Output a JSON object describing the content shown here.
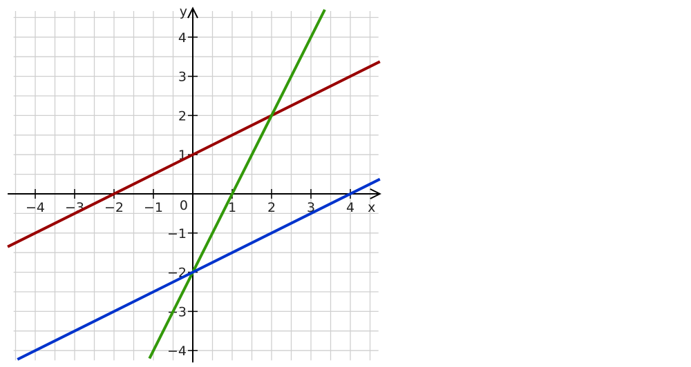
{
  "chart_data": {
    "type": "line",
    "title": "",
    "xlabel": "x",
    "ylabel": "y",
    "origin_label": "0",
    "xlim": [
      -4.7,
      4.75
    ],
    "ylim": [
      -4.25,
      4.7
    ],
    "grid": true,
    "grid_step": 0.5,
    "x_ticks": [
      {
        "value": -4,
        "label": "−4"
      },
      {
        "value": -3,
        "label": "−3"
      },
      {
        "value": -2,
        "label": "−2"
      },
      {
        "value": -1,
        "label": "−1"
      },
      {
        "value": 1,
        "label": "1"
      },
      {
        "value": 2,
        "label": "2"
      },
      {
        "value": 3,
        "label": "3"
      },
      {
        "value": 4,
        "label": "4"
      }
    ],
    "y_ticks": [
      {
        "value": -4,
        "label": "−4"
      },
      {
        "value": -3,
        "label": "−3"
      },
      {
        "value": -2,
        "label": "−2"
      },
      {
        "value": -1,
        "label": "−1"
      },
      {
        "value": 1,
        "label": "1"
      },
      {
        "value": 2,
        "label": "2"
      },
      {
        "value": 3,
        "label": "3"
      },
      {
        "value": 4,
        "label": "4"
      }
    ],
    "series": [
      {
        "color": "#990000",
        "x": [
          -4.7,
          4.75
        ],
        "y": [
          -1.35,
          3.375
        ]
      },
      {
        "color": "#33990a",
        "x": [
          -1.1,
          3.35
        ],
        "y": [
          -4.2,
          4.7
        ]
      },
      {
        "color": "#0033cc",
        "x": [
          -4.45,
          4.75
        ],
        "y": [
          -4.225,
          0.375
        ]
      }
    ]
  }
}
